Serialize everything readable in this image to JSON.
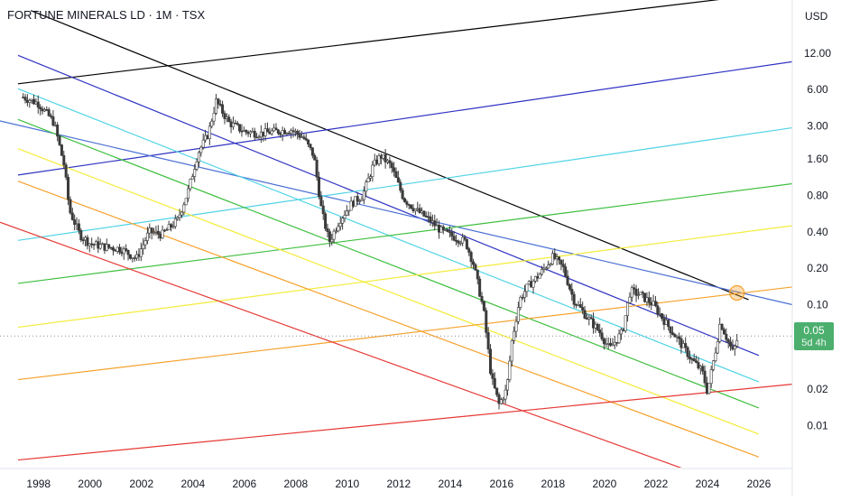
{
  "header": {
    "title": "FORTUNE MINERALS LD · 1M · TSX",
    "currency": "USD"
  },
  "price_badge": {
    "price": "0.05",
    "countdown": "5d 4h",
    "color": "#4caf6e"
  },
  "chart_data": {
    "type": "candlestick",
    "title": "FORTUNE MINERALS LD · 1M · TSX",
    "xlabel": "",
    "ylabel": "",
    "y_scale": "log",
    "x_ticks": [
      "1998",
      "2000",
      "2002",
      "2004",
      "2006",
      "2008",
      "2010",
      "2012",
      "2014",
      "2016",
      "2018",
      "2020",
      "2022",
      "2024",
      "2026"
    ],
    "y_ticks": [
      "12.00",
      "6.00",
      "3.00",
      "1.60",
      "0.80",
      "0.40",
      "0.20",
      "0.10",
      "0.02",
      "0.01"
    ],
    "xlim": [
      1996.5,
      2027.3
    ],
    "ylim": [
      0.0045,
      33
    ],
    "grid": false,
    "colors": {
      "up": "#26a69a",
      "down": "#ef5350",
      "candle": "#3a3a3a"
    },
    "price_path": [
      [
        1997.4,
        5.2
      ],
      [
        1998.0,
        4.6
      ],
      [
        1998.6,
        3.2
      ],
      [
        1999.0,
        1.4
      ],
      [
        1999.2,
        0.6
      ],
      [
        1999.6,
        0.38
      ],
      [
        2000.0,
        0.32
      ],
      [
        2000.6,
        0.3
      ],
      [
        2001.2,
        0.29
      ],
      [
        2001.8,
        0.24
      ],
      [
        2002.3,
        0.4
      ],
      [
        2002.8,
        0.38
      ],
      [
        2003.4,
        0.5
      ],
      [
        2003.8,
        0.85
      ],
      [
        2004.2,
        1.8
      ],
      [
        2004.6,
        2.6
      ],
      [
        2004.9,
        4.8
      ],
      [
        2005.4,
        3.2
      ],
      [
        2006.0,
        2.7
      ],
      [
        2006.6,
        2.6
      ],
      [
        2007.2,
        2.7
      ],
      [
        2007.8,
        2.8
      ],
      [
        2008.3,
        2.4
      ],
      [
        2008.7,
        1.7
      ],
      [
        2009.0,
        0.6
      ],
      [
        2009.3,
        0.33
      ],
      [
        2009.7,
        0.5
      ],
      [
        2010.2,
        0.7
      ],
      [
        2010.6,
        0.8
      ],
      [
        2011.0,
        1.4
      ],
      [
        2011.3,
        1.7
      ],
      [
        2011.7,
        1.4
      ],
      [
        2012.2,
        0.75
      ],
      [
        2012.7,
        0.6
      ],
      [
        2013.2,
        0.5
      ],
      [
        2013.7,
        0.4
      ],
      [
        2014.2,
        0.36
      ],
      [
        2014.6,
        0.33
      ],
      [
        2014.9,
        0.22
      ],
      [
        2015.3,
        0.09
      ],
      [
        2015.6,
        0.025
      ],
      [
        2015.9,
        0.015
      ],
      [
        2016.2,
        0.02
      ],
      [
        2016.4,
        0.05
      ],
      [
        2016.7,
        0.11
      ],
      [
        2017.0,
        0.14
      ],
      [
        2017.5,
        0.18
      ],
      [
        2018.0,
        0.25
      ],
      [
        2018.4,
        0.2
      ],
      [
        2018.8,
        0.11
      ],
      [
        2019.3,
        0.08
      ],
      [
        2019.8,
        0.06
      ],
      [
        2020.2,
        0.043
      ],
      [
        2020.7,
        0.06
      ],
      [
        2021.0,
        0.13
      ],
      [
        2021.4,
        0.12
      ],
      [
        2021.9,
        0.1
      ],
      [
        2022.4,
        0.07
      ],
      [
        2022.9,
        0.05
      ],
      [
        2023.4,
        0.035
      ],
      [
        2023.8,
        0.028
      ],
      [
        2024.0,
        0.019
      ],
      [
        2024.3,
        0.04
      ],
      [
        2024.5,
        0.072
      ],
      [
        2024.8,
        0.05
      ],
      [
        2025.0,
        0.04
      ],
      [
        2025.2,
        0.055
      ]
    ],
    "trend_lines": [
      {
        "color": "#000000",
        "points": [
          [
            1997.2,
            6.7
          ],
          [
            2024.8,
            34.0
          ]
        ]
      },
      {
        "color": "#000000",
        "points": [
          [
            1997.7,
            27.0
          ],
          [
            2025.6,
            0.11
          ]
        ]
      },
      {
        "color": "#2f33c2",
        "points": [
          [
            1997.2,
            1.18
          ],
          [
            2027.3,
            10.2
          ]
        ]
      },
      {
        "color": "#2f33c2",
        "points": [
          [
            1997.2,
            11.5
          ],
          [
            2026.0,
            0.038
          ]
        ]
      },
      {
        "color": "#4a6fd4",
        "points": [
          [
            1996.5,
            3.3
          ],
          [
            2027.3,
            0.1
          ]
        ]
      },
      {
        "color": "#4fd3e6",
        "points": [
          [
            1997.2,
            0.34
          ],
          [
            2027.3,
            2.9
          ]
        ]
      },
      {
        "color": "#4fd3e6",
        "points": [
          [
            1997.2,
            6.1
          ],
          [
            2026.0,
            0.023
          ]
        ]
      },
      {
        "color": "#3fbf3f",
        "points": [
          [
            1997.2,
            0.15
          ],
          [
            2027.3,
            1.0
          ]
        ]
      },
      {
        "color": "#3fbf3f",
        "points": [
          [
            1997.2,
            3.4
          ],
          [
            2026.0,
            0.014
          ]
        ]
      },
      {
        "color": "#f3ec3a",
        "points": [
          [
            1997.2,
            0.065
          ],
          [
            2027.3,
            0.45
          ]
        ]
      },
      {
        "color": "#f3ec3a",
        "points": [
          [
            1997.2,
            1.95
          ],
          [
            2026.0,
            0.0085
          ]
        ]
      },
      {
        "color": "#f5a12c",
        "points": [
          [
            1997.2,
            0.024
          ],
          [
            2027.3,
            0.14
          ]
        ]
      },
      {
        "color": "#f5a12c",
        "points": [
          [
            1997.2,
            1.05
          ],
          [
            2026.0,
            0.0055
          ]
        ]
      },
      {
        "color": "#e53935",
        "points": [
          [
            1997.2,
            0.0052
          ],
          [
            2027.3,
            0.022
          ]
        ]
      },
      {
        "color": "#e53935",
        "points": [
          [
            1996.5,
            0.48
          ],
          [
            2023.2,
            0.0043
          ]
        ]
      }
    ],
    "marker": {
      "x": 2025.15,
      "y": 0.125,
      "color": "#f5a12c"
    },
    "last_price_line": 0.055
  }
}
